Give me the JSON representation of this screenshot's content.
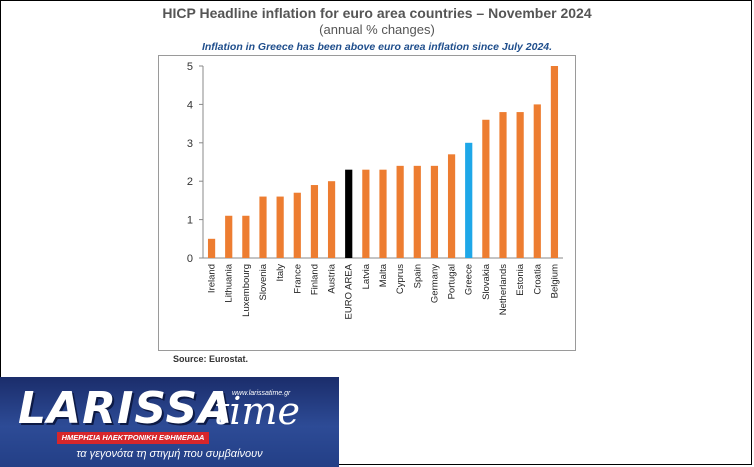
{
  "header": {
    "title": "HICP Headline inflation for euro area countries – November 2024",
    "subtitle": "(annual % changes)",
    "note": "Inflation in Greece has been above euro area inflation since July 2024."
  },
  "footer": {
    "source": "Source: Eurostat."
  },
  "logo": {
    "word": "LARISSA",
    "time": "time",
    "url": "www.larissatime.gr",
    "band": "ΗΜΕΡΗΣΙΑ ΗΛΕΚΤΡΟΝΙΚΗ ΕΦΗΜΕΡΙΔΑ",
    "tagline": "τα γεγονότα τη στιγμή που συμβαίνουν"
  },
  "chart_data": {
    "type": "bar",
    "title": "HICP Headline inflation for euro area countries – November 2024",
    "subtitle": "(annual % changes)",
    "categories": [
      "Ireland",
      "Lithuania",
      "Luxembourg",
      "Slovenia",
      "Italy",
      "France",
      "Finland",
      "Austria",
      "EURO AREA",
      "Latvia",
      "Malta",
      "Cyprus",
      "Spain",
      "Germany",
      "Portugal",
      "Greece",
      "Slovakia",
      "Netherlands",
      "Estonia",
      "Croatia",
      "Belgium"
    ],
    "values": [
      0.5,
      1.1,
      1.1,
      1.6,
      1.6,
      1.7,
      1.9,
      2.0,
      2.3,
      2.3,
      2.3,
      2.4,
      2.4,
      2.4,
      2.7,
      3.0,
      3.6,
      3.8,
      3.8,
      4.0,
      5.0
    ],
    "highlight": {
      "EURO AREA": "#000000",
      "Greece": "#1ea7e8"
    },
    "default_color": "#ed7d31",
    "ylim": [
      0,
      5
    ],
    "yticks": [
      0,
      1,
      2,
      3,
      4,
      5
    ],
    "grid": false,
    "legend": "none",
    "xlabel": "",
    "ylabel": ""
  }
}
